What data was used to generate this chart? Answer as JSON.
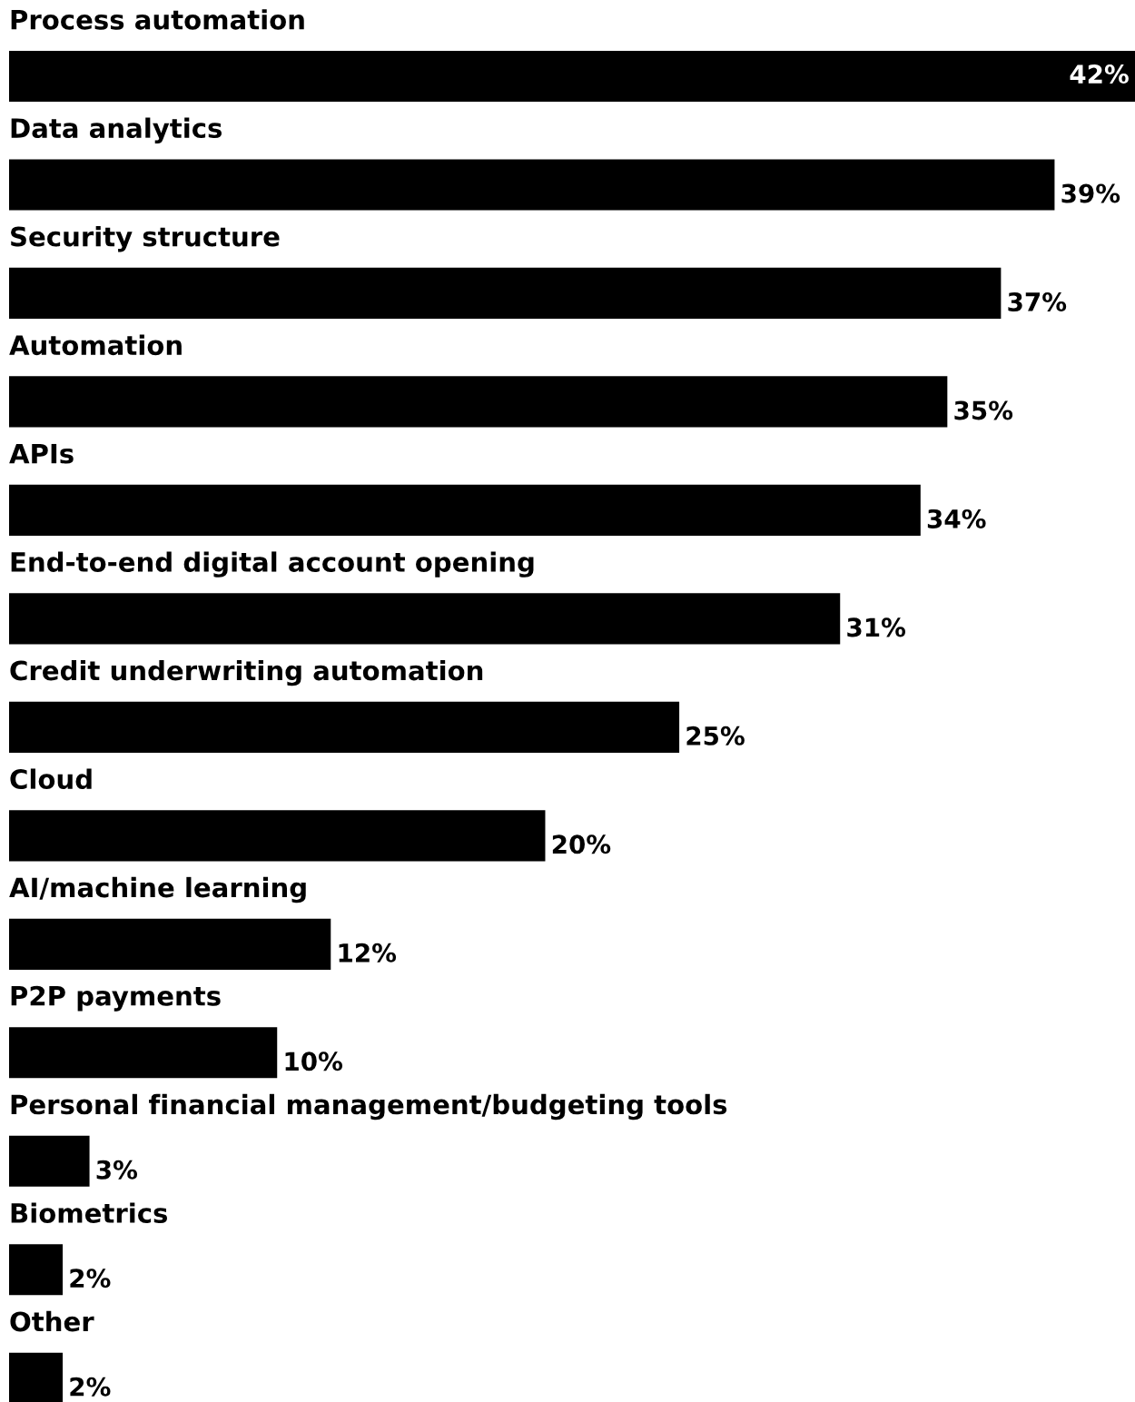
{
  "chart_data": {
    "type": "bar",
    "orientation": "horizontal",
    "data_labels": true,
    "color": "#000000",
    "categories": [
      "Process automation",
      "Data analytics",
      "Security structure",
      "Automation",
      "APIs",
      "End-to-end digital account opening",
      "Credit underwriting automation",
      "Cloud",
      "AI/machine learning",
      "P2P payments",
      "Personal financial management/budgeting tools",
      "Biometrics",
      "Other"
    ],
    "values": [
      42,
      39,
      37,
      35,
      34,
      31,
      25,
      20,
      12,
      10,
      3,
      2,
      2
    ],
    "value_labels": [
      "42%",
      "39%",
      "37%",
      "35%",
      "34%",
      "31%",
      "25%",
      "20%",
      "12%",
      "10%",
      "3%",
      "2%",
      "2%"
    ]
  }
}
